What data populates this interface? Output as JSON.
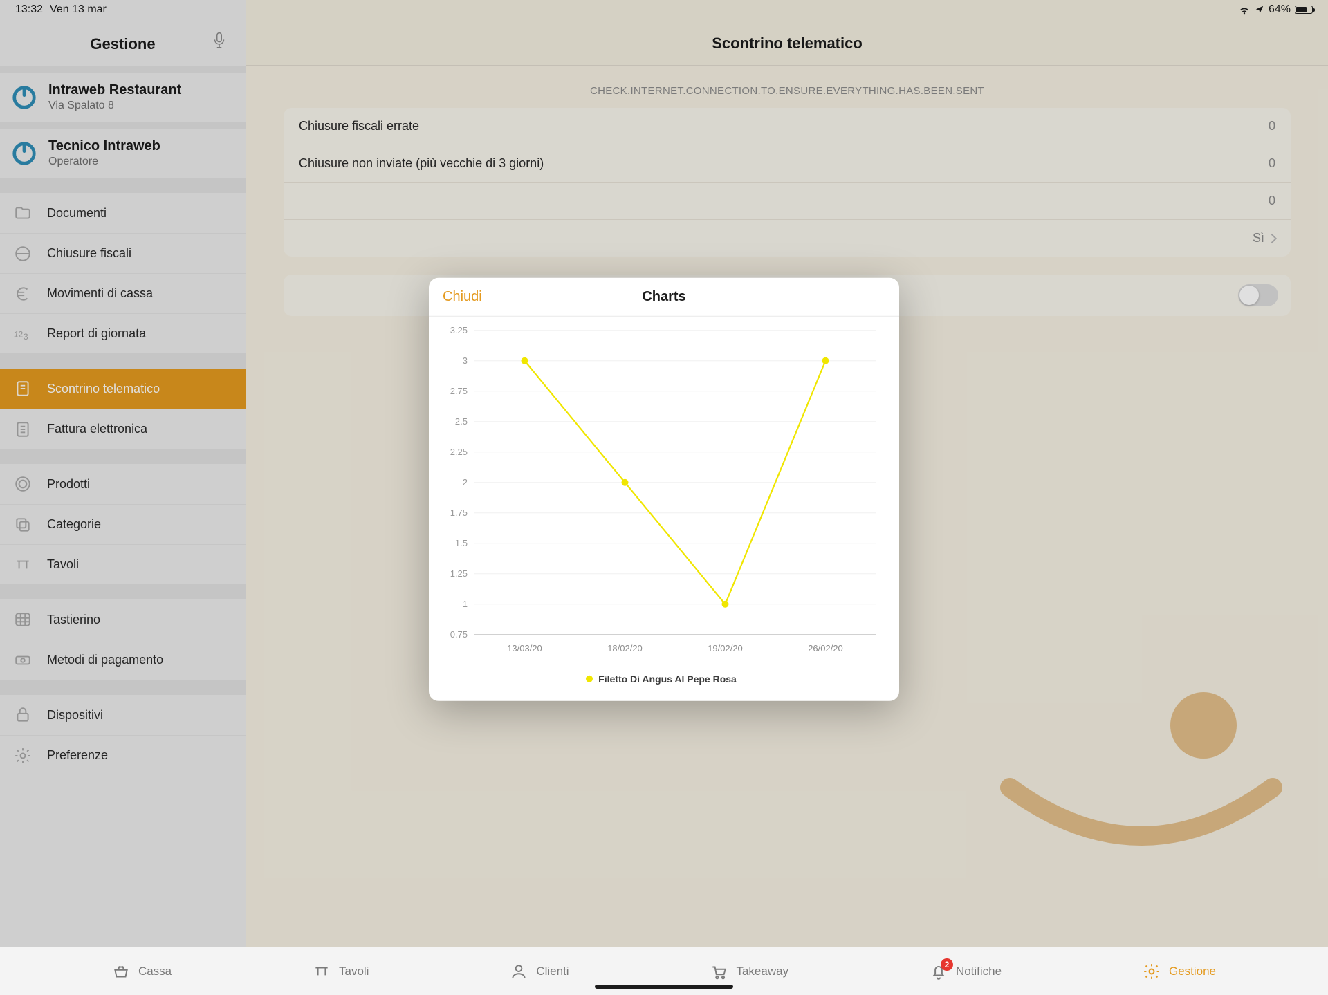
{
  "status": {
    "time": "13:32",
    "date": "Ven 13 mar",
    "battery_pct": "64%"
  },
  "sidebar": {
    "title": "Gestione",
    "business": {
      "name": "Intraweb Restaurant",
      "address": "Via Spalato 8"
    },
    "operator": {
      "name": "Tecnico Intraweb",
      "role": "Operatore"
    },
    "groups": [
      {
        "items": [
          {
            "id": "documenti",
            "label": "Documenti",
            "icon": "folder"
          },
          {
            "id": "chiusure",
            "label": "Chiusure fiscali",
            "icon": "circle-half"
          },
          {
            "id": "movimenti",
            "label": "Movimenti di cassa",
            "icon": "euro"
          },
          {
            "id": "report",
            "label": "Report di giornata",
            "icon": "123"
          }
        ]
      },
      {
        "items": [
          {
            "id": "scontrino",
            "label": "Scontrino telematico",
            "icon": "receipt",
            "active": true
          },
          {
            "id": "fattura",
            "label": "Fattura elettronica",
            "icon": "doc-lines"
          }
        ]
      },
      {
        "items": [
          {
            "id": "prodotti",
            "label": "Prodotti",
            "icon": "ring"
          },
          {
            "id": "categorie",
            "label": "Categorie",
            "icon": "stack"
          },
          {
            "id": "tavoli",
            "label": "Tavoli",
            "icon": "table-shape"
          }
        ]
      },
      {
        "items": [
          {
            "id": "tastierino",
            "label": "Tastierino",
            "icon": "keypad"
          },
          {
            "id": "pagamento",
            "label": "Metodi di pagamento",
            "icon": "cash"
          }
        ]
      },
      {
        "items": [
          {
            "id": "dispositivi",
            "label": "Dispositivi",
            "icon": "lock"
          },
          {
            "id": "preferenze",
            "label": "Preferenze",
            "icon": "gear"
          }
        ]
      }
    ]
  },
  "content": {
    "title": "Scontrino telematico",
    "warn": "CHECK.INTERNET.CONNECTION.TO.ENSURE.EVERYTHING.HAS.BEEN.SENT",
    "rows": [
      {
        "label": "Chiusure fiscali errate",
        "value": "0"
      },
      {
        "label": "Chiusure non inviate (più vecchie di 3 giorni)",
        "value": "0"
      },
      {
        "label": "",
        "value": "0"
      },
      {
        "label": "",
        "value": "Sì",
        "chevron": true
      }
    ]
  },
  "modal": {
    "close": "Chiudi",
    "title": "Charts",
    "chart": {
      "type": "line",
      "series_name": "Filetto Di Angus Al Pepe Rosa",
      "x_labels": [
        "13/03/20",
        "18/02/20",
        "19/02/20",
        "26/02/20"
      ],
      "y_values": [
        3,
        2,
        1,
        3
      ],
      "ylim": [
        0.75,
        3.25
      ],
      "yticks": [
        0.75,
        1,
        1.25,
        1.5,
        1.75,
        2,
        2.25,
        2.5,
        2.75,
        3,
        3.25
      ],
      "colors": {
        "line": "#f0e600",
        "marker": "#f0e600",
        "grid": "#f0f0f0",
        "axis_line": "#d1d1d1",
        "background": "#ffffff",
        "ylabel": "#9a9a9a",
        "xlabel": "#8d8d8d",
        "legend_text": "#3a3a3a"
      },
      "line_width": 2.2,
      "marker_radius": 5,
      "label_fontsize": 13
    }
  },
  "tabs": {
    "items": [
      {
        "id": "cassa",
        "label": "Cassa",
        "icon": "basket"
      },
      {
        "id": "tavoli",
        "label": "Tavoli",
        "icon": "table-shape"
      },
      {
        "id": "clienti",
        "label": "Clienti",
        "icon": "person"
      },
      {
        "id": "takeaway",
        "label": "Takeaway",
        "icon": "cart"
      },
      {
        "id": "notifiche",
        "label": "Notifiche",
        "icon": "bell",
        "badge": "2"
      },
      {
        "id": "gestione",
        "label": "Gestione",
        "icon": "gear",
        "active": true
      }
    ]
  },
  "accent": {
    "orange": "#e49a1f",
    "cream": "#e3bf8a"
  }
}
